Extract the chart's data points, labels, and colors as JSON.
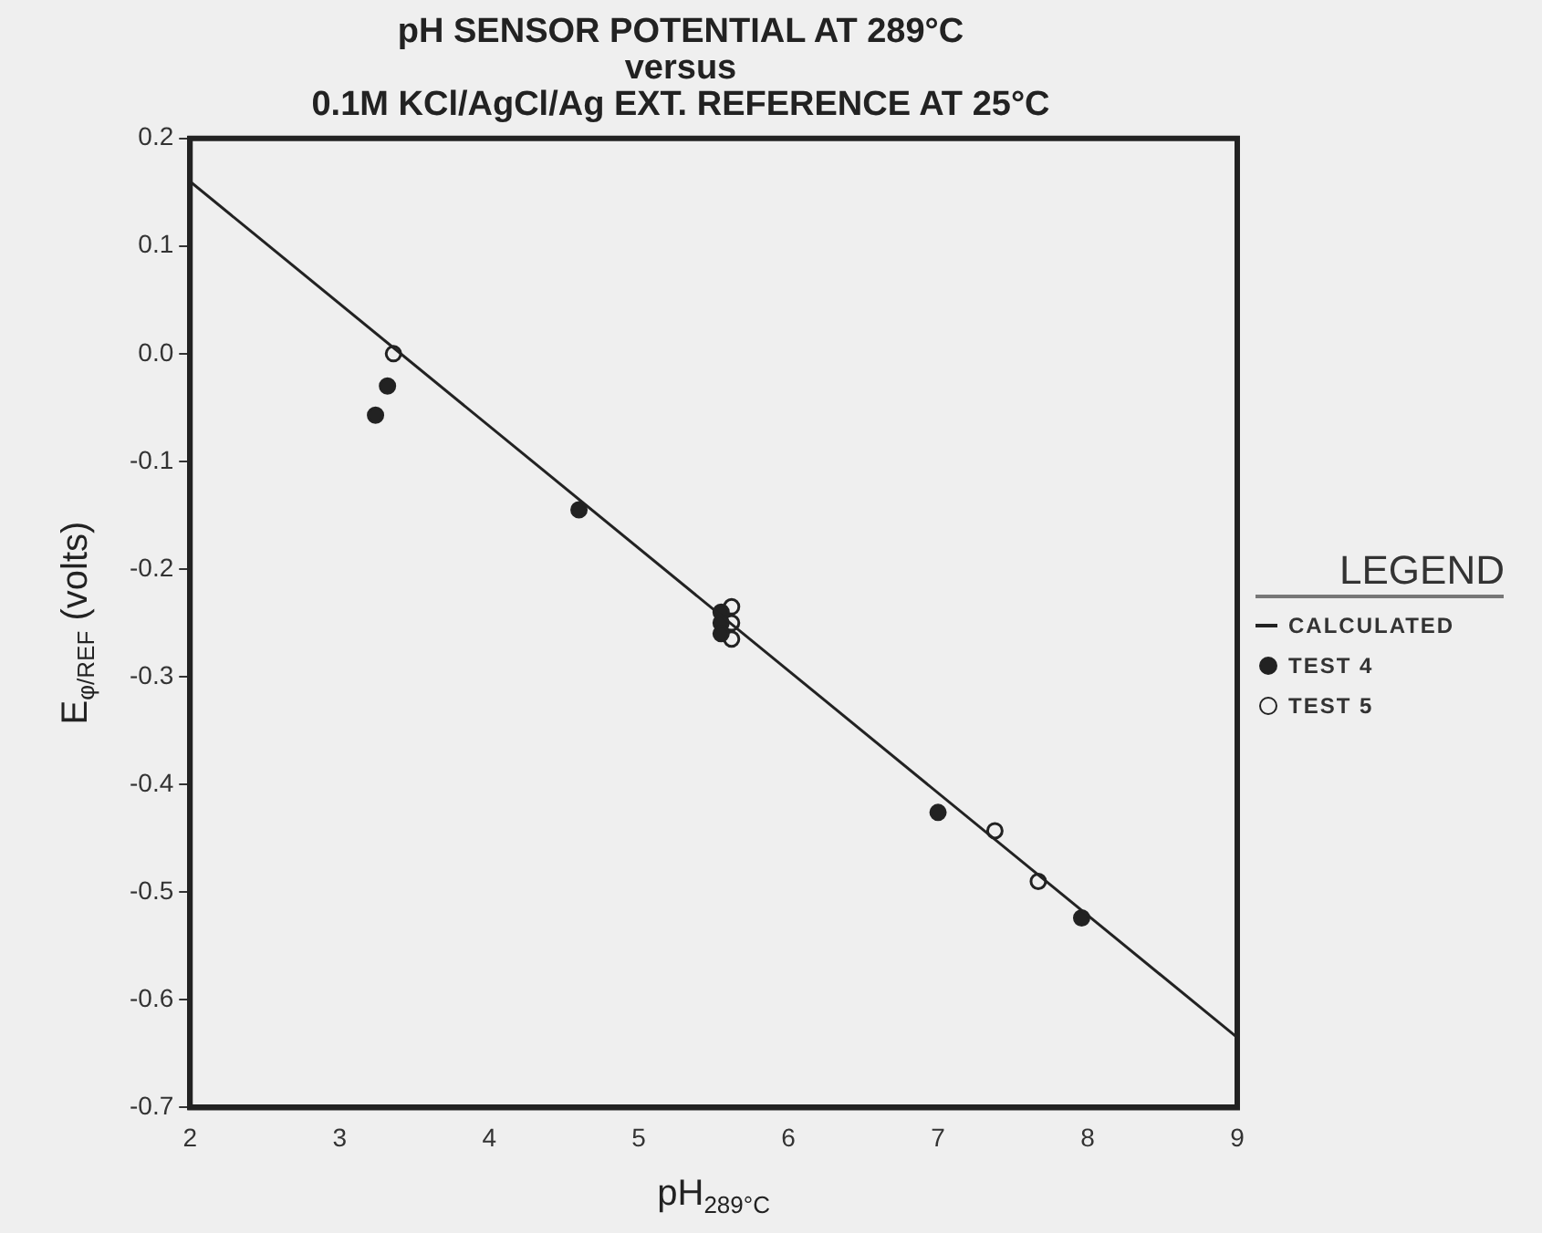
{
  "chart_data": {
    "type": "scatter",
    "title": "pH SENSOR POTENTIAL AT 289°C\nversus\n0.1M KCl/AgCl/Ag EXT. REFERENCE AT 25°C",
    "xlabel": "pH$_{289°C}$",
    "ylabel": "E$_{φ/REF}$ (volts)",
    "legend_title": "LEGEND",
    "legend": "right",
    "grid": false,
    "marker": "circle",
    "xlim": [
      2,
      9
    ],
    "xticks": [
      2,
      3,
      4,
      5,
      6,
      7,
      8,
      9
    ],
    "ylim": [
      -0.7,
      0.2
    ],
    "yticks": [
      {
        "value": 0.2,
        "label": "0.2"
      },
      {
        "value": 0.1,
        "label": "0.1"
      },
      {
        "value": 0,
        "label": "0.0"
      },
      {
        "value": -0.1,
        "label": "-0.1"
      },
      {
        "value": -0.2,
        "label": "-0.2"
      },
      {
        "value": -0.3,
        "label": "-0.3"
      },
      {
        "value": -0.4,
        "label": "-0.4"
      },
      {
        "value": -0.5,
        "label": "-0.5"
      },
      {
        "value": -0.6,
        "label": "-0.6"
      },
      {
        "value": -0.7,
        "label": "-0.7"
      }
    ],
    "series": [
      {
        "name": "CALCULATED",
        "type": "line",
        "marker": "none",
        "color": "#222222",
        "x": [
          2,
          9
        ],
        "values": [
          0.16,
          -0.635
        ]
      },
      {
        "name": "TEST 4",
        "color": "#222222",
        "x": [
          3.24,
          3.32,
          4.6,
          5.55,
          5.55,
          5.55,
          7.0,
          7.96
        ],
        "values": [
          -0.057,
          -0.03,
          -0.145,
          -0.24,
          -0.25,
          -0.26,
          -0.426,
          -0.524
        ]
      },
      {
        "name": "TEST 5",
        "color": "#222222",
        "x": [
          3.36,
          5.62,
          5.62,
          5.62,
          7.38,
          7.67
        ],
        "values": [
          0.0,
          -0.235,
          -0.25,
          -0.265,
          -0.443,
          -0.49
        ]
      }
    ]
  }
}
